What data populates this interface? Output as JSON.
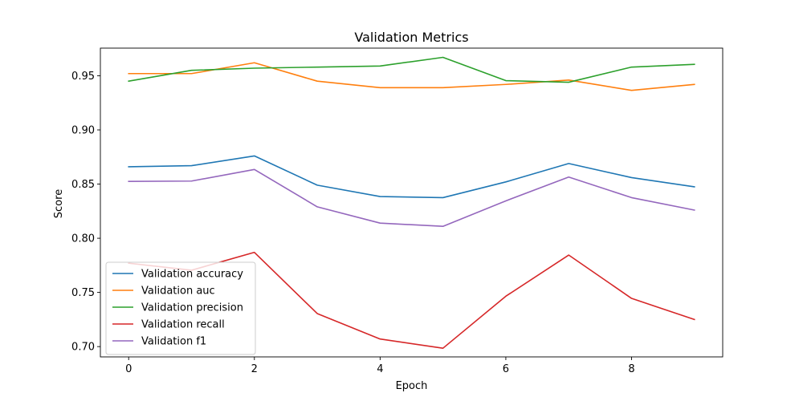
{
  "chart_data": {
    "type": "line",
    "title": "Validation Metrics",
    "xlabel": "Epoch",
    "ylabel": "Score",
    "xlim": [
      -0.45,
      9.45
    ],
    "ylim": [
      0.6905,
      0.9755
    ],
    "x_ticks": [
      0,
      2,
      4,
      6,
      8
    ],
    "y_ticks": [
      0.7,
      0.75,
      0.8,
      0.85,
      0.9,
      0.95
    ],
    "x_tick_labels": [
      "0",
      "2",
      "4",
      "6",
      "8"
    ],
    "y_tick_labels": [
      "0.70",
      "0.75",
      "0.80",
      "0.85",
      "0.90",
      "0.95"
    ],
    "grid": false,
    "legend_position": "lower-left",
    "x": [
      0,
      1,
      2,
      3,
      4,
      5,
      6,
      7,
      8,
      9
    ],
    "series": [
      {
        "name": "Validation accuracy",
        "color": "#1f77b4",
        "values": [
          0.866,
          0.867,
          0.876,
          0.849,
          0.8385,
          0.8375,
          0.852,
          0.869,
          0.856,
          0.8475
        ]
      },
      {
        "name": "Validation auc",
        "color": "#ff7f0e",
        "values": [
          0.952,
          0.952,
          0.962,
          0.945,
          0.939,
          0.939,
          0.942,
          0.946,
          0.9365,
          0.942
        ]
      },
      {
        "name": "Validation precision",
        "color": "#2ca02c",
        "values": [
          0.945,
          0.955,
          0.957,
          0.958,
          0.959,
          0.967,
          0.9455,
          0.944,
          0.958,
          0.9605
        ]
      },
      {
        "name": "Validation recall",
        "color": "#d62728",
        "values": [
          0.777,
          0.7705,
          0.787,
          0.7305,
          0.707,
          0.6985,
          0.7465,
          0.7845,
          0.7445,
          0.725
        ]
      },
      {
        "name": "Validation f1",
        "color": "#9467bd",
        "values": [
          0.8525,
          0.8528,
          0.8635,
          0.829,
          0.814,
          0.811,
          0.8345,
          0.8565,
          0.8375,
          0.826
        ]
      }
    ]
  }
}
